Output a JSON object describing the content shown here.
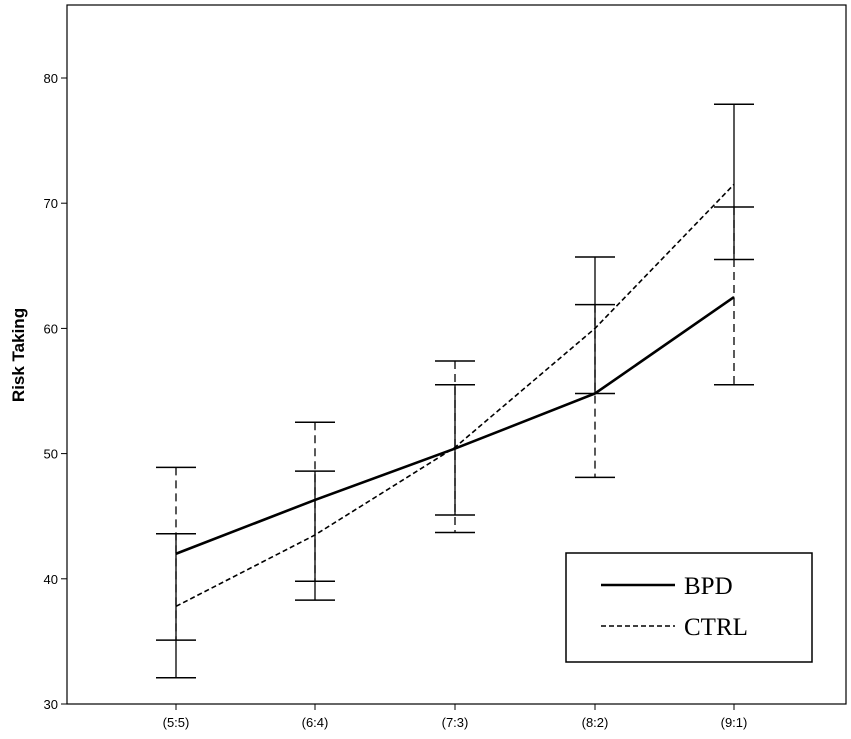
{
  "chart_data": {
    "type": "line",
    "title": "",
    "xlabel": "",
    "ylabel": "Risk Taking",
    "categories": [
      "(5:5)",
      "(6:4)",
      "(7:3)",
      "(8:2)",
      "(9:1)"
    ],
    "ylim": [
      30,
      85
    ],
    "yticks": [
      30,
      40,
      50,
      60,
      70,
      80
    ],
    "grid": false,
    "legend_position": "bottom-right",
    "series": [
      {
        "name": "BPD",
        "style": "solid",
        "color": "#000000",
        "values": [
          42.0,
          46.3,
          50.4,
          54.8,
          62.5
        ],
        "error_low": [
          32.1,
          38.3,
          45.1,
          54.8,
          65.5
        ],
        "error_high": [
          43.6,
          48.6,
          55.5,
          65.7,
          77.9
        ]
      },
      {
        "name": "CTRL",
        "style": "dashed",
        "color": "#000000",
        "values": [
          37.8,
          43.5,
          50.5,
          60.0,
          71.5
        ],
        "error_low": [
          35.1,
          39.8,
          43.7,
          48.1,
          55.5
        ],
        "error_high": [
          48.9,
          52.5,
          57.4,
          61.9,
          69.7
        ]
      }
    ]
  }
}
